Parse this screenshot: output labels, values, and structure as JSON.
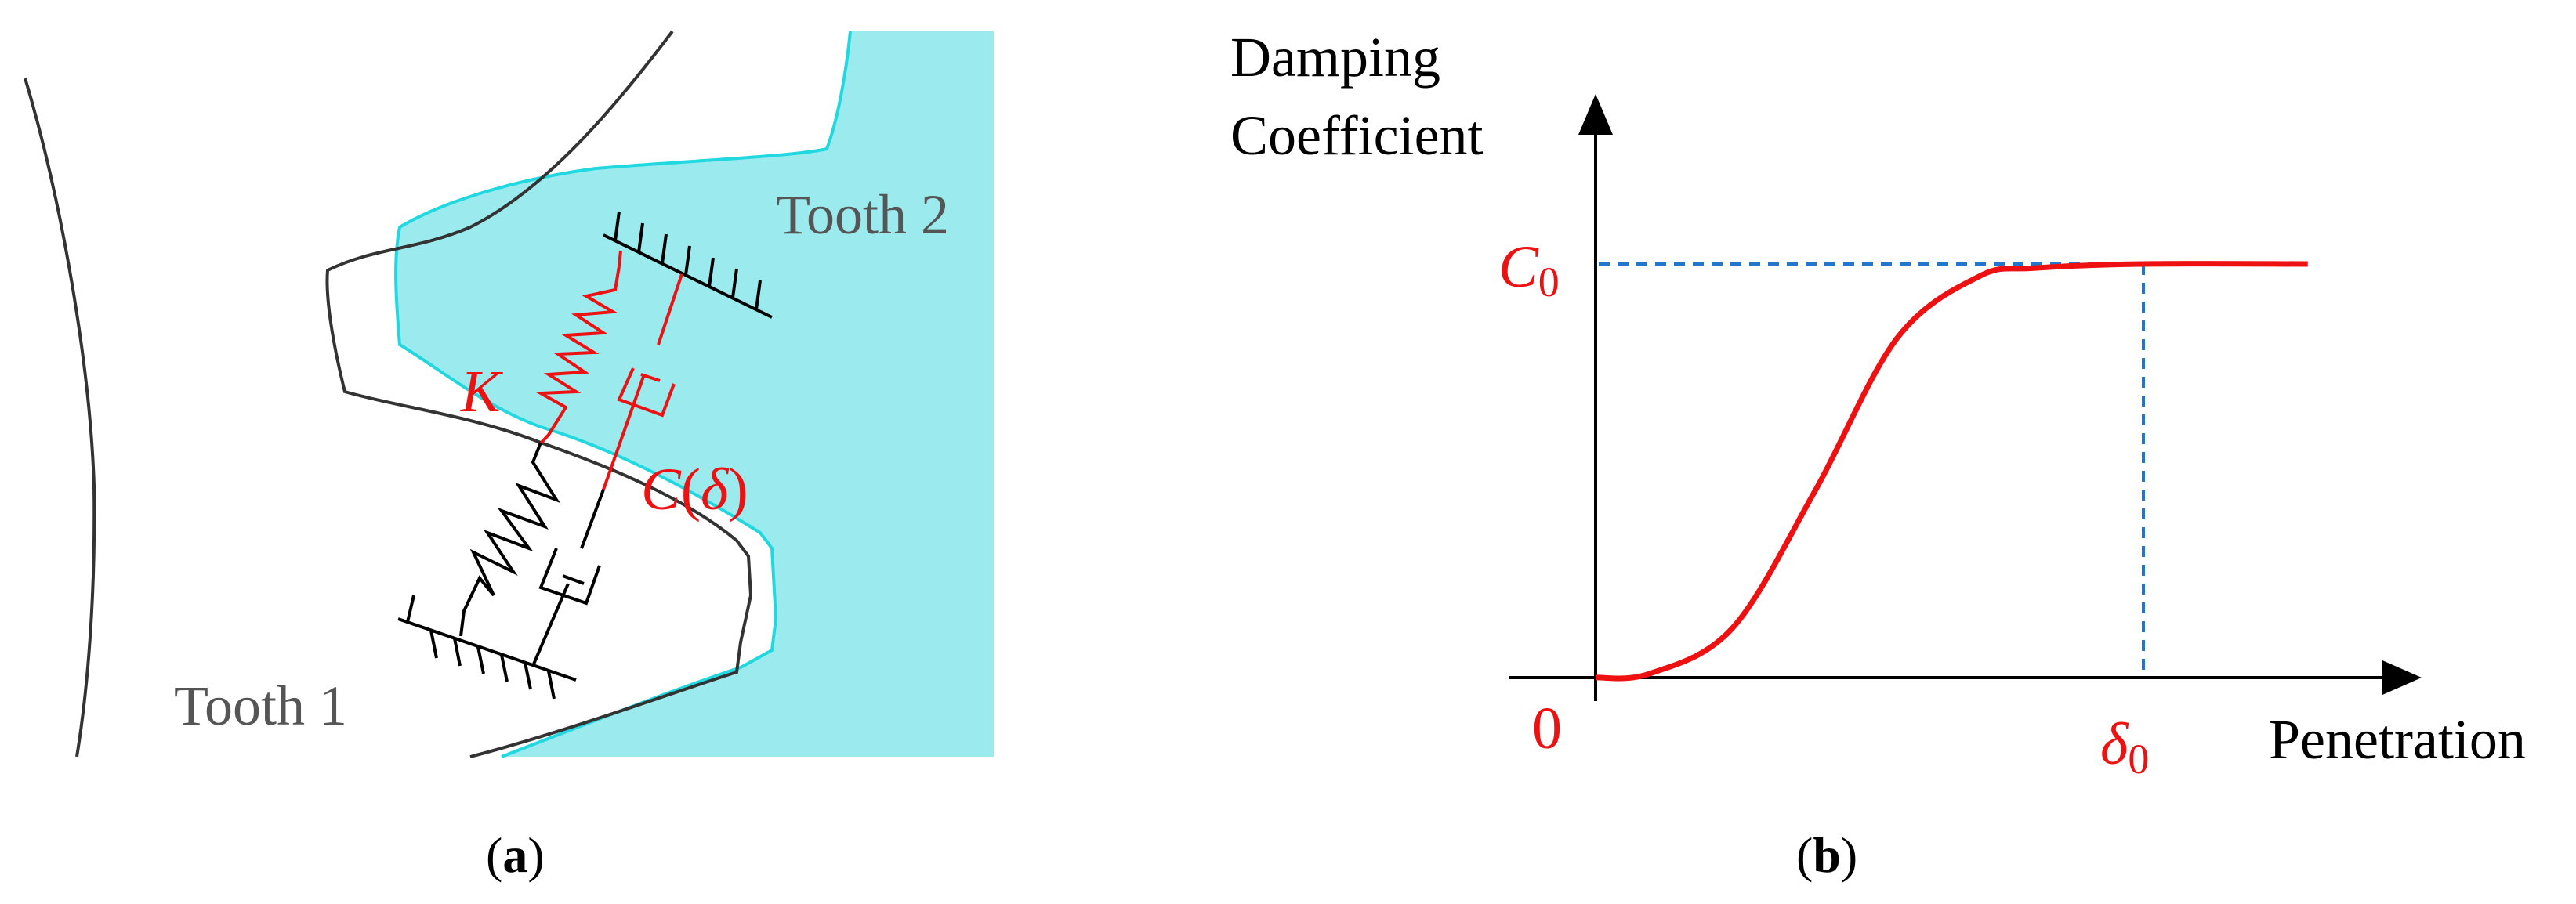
{
  "figure": {
    "panel_a": {
      "caption_open": "(",
      "caption_letter": "a",
      "caption_close": ")",
      "tooth1_label": "Tooth 1",
      "tooth2_label": "Tooth 2",
      "stiffness_label": "K",
      "damping_label_func": "C",
      "damping_label_open": "(",
      "damping_label_arg": "δ",
      "damping_label_close": ")"
    },
    "panel_b": {
      "caption_open": "(",
      "caption_letter": "b",
      "caption_close": ")",
      "y_axis_label_line1": "Damping",
      "y_axis_label_line2": "Coefficient",
      "x_axis_label": "Penetration",
      "c0_symbol": "C",
      "c0_subscript": "0",
      "delta0_symbol": "δ",
      "delta0_subscript": "0",
      "origin_label": "0"
    }
  },
  "colors": {
    "tooth2_fill": "#9aeaee",
    "tooth2_outline": "#22d8e0",
    "outline": "#333333",
    "highlight": "#ee1111",
    "guide": "#2277cc",
    "text_gray": "#555555"
  },
  "chart_data": {
    "type": "line",
    "xlabel": "Penetration",
    "ylabel": "Damping Coefficient",
    "x_ticks": [
      "0",
      "δ0"
    ],
    "y_ticks": [
      "C0"
    ],
    "series": [
      {
        "shape": "smooth step",
        "x": [
          0,
          0.1,
          0.25,
          0.4,
          0.55,
          0.7,
          0.8,
          1.0,
          1.3
        ],
        "y": [
          0,
          0.01,
          0.12,
          0.45,
          0.82,
          0.97,
          0.99,
          1.0,
          1.0
        ]
      }
    ]
  }
}
